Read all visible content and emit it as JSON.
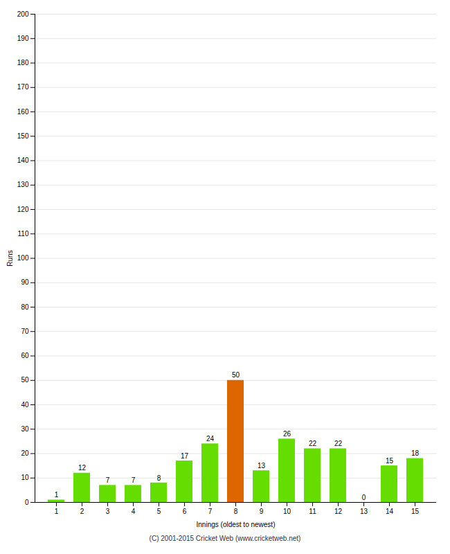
{
  "chart_data": {
    "type": "bar",
    "xlabel": "Innings (oldest to newest)",
    "ylabel": "Runs",
    "categories": [
      "1",
      "2",
      "3",
      "4",
      "5",
      "6",
      "7",
      "8",
      "9",
      "10",
      "11",
      "12",
      "13",
      "14",
      "15"
    ],
    "values": [
      1,
      12,
      7,
      7,
      8,
      17,
      24,
      50,
      13,
      26,
      22,
      22,
      0,
      15,
      18
    ],
    "colors": [
      "#66dd00",
      "#66dd00",
      "#66dd00",
      "#66dd00",
      "#66dd00",
      "#66dd00",
      "#66dd00",
      "#dd6600",
      "#66dd00",
      "#66dd00",
      "#66dd00",
      "#66dd00",
      "#66dd00",
      "#66dd00",
      "#66dd00"
    ],
    "ylim": [
      0,
      200
    ],
    "yticks": [
      0,
      10,
      20,
      30,
      40,
      50,
      60,
      70,
      80,
      90,
      100,
      110,
      120,
      130,
      140,
      150,
      160,
      170,
      180,
      190,
      200
    ],
    "grid": true,
    "data_labels": true,
    "footer": "(C) 2001-2015 Cricket Web (www.cricketweb.net)"
  }
}
